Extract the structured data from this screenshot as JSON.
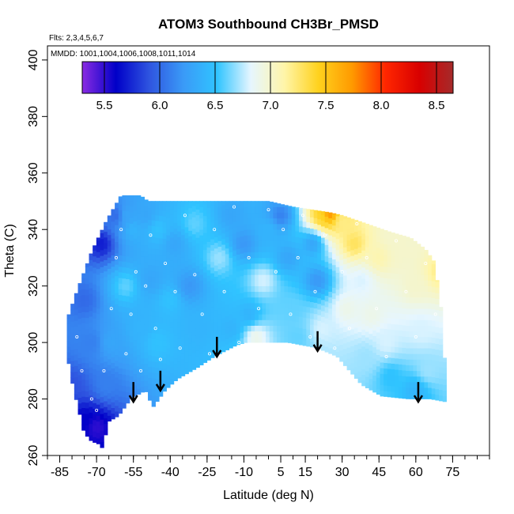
{
  "chart_data": {
    "type": "heatmap",
    "title": "ATOM3 Southbound CH3Br_PMSD",
    "annotations": [
      "Flts: 2,3,4,5,6,7",
      "MMDD: 1001,1004,1006,1008,1011,1014"
    ],
    "xlabel": "Latitude (deg N)",
    "ylabel": "Theta (C)",
    "xlim": [
      -90,
      90
    ],
    "ylim": [
      260,
      405
    ],
    "x_tick_labels": [
      "-85",
      "-70",
      "-55",
      "-40",
      "-25",
      "-10",
      "5",
      "15",
      "30",
      "45",
      "60",
      "75"
    ],
    "x_tick_values": [
      -85,
      -70,
      -55,
      -40,
      -25,
      -10,
      5,
      15,
      30,
      45,
      60,
      75
    ],
    "x_minor_step": 5,
    "y_tick_labels": [
      "260",
      "280",
      "300",
      "320",
      "340",
      "360",
      "380",
      "400"
    ],
    "y_tick_values": [
      260,
      280,
      300,
      320,
      340,
      360,
      380,
      400
    ],
    "colorbar": {
      "min": 5.3,
      "max": 8.65,
      "tick_labels": [
        "5.5",
        "6.0",
        "6.5",
        "7.0",
        "7.5",
        "8.0",
        "8.5"
      ],
      "tick_values": [
        5.5,
        6.0,
        6.5,
        7.0,
        7.5,
        8.0,
        8.5
      ],
      "colors": [
        "#8a2be2",
        "#0000c8",
        "#2f55e0",
        "#3a9af7",
        "#30c4ff",
        "#e6f6ff",
        "#fff5a8",
        "#ffd21e",
        "#ff9a00",
        "#ff2600",
        "#d80000",
        "#a52a2a"
      ]
    },
    "field": {
      "bottom_boundary": [
        [
          -82,
          296
        ],
        [
          -79,
          282
        ],
        [
          -77,
          276
        ],
        [
          -76,
          270
        ],
        [
          -74,
          267
        ],
        [
          -72,
          265
        ],
        [
          -69,
          264
        ],
        [
          -68,
          262
        ],
        [
          -66,
          268
        ],
        [
          -65,
          272
        ],
        [
          -61,
          274
        ],
        [
          -56,
          280
        ],
        [
          -50,
          283
        ],
        [
          -47,
          277
        ],
        [
          -42,
          283
        ],
        [
          -37,
          287
        ],
        [
          -29,
          291
        ],
        [
          -22,
          295
        ],
        [
          -13,
          299
        ],
        [
          -9,
          300
        ],
        [
          0,
          300
        ],
        [
          8,
          300
        ],
        [
          20,
          298
        ],
        [
          28,
          295
        ],
        [
          38,
          285
        ],
        [
          46,
          281
        ],
        [
          57,
          280
        ],
        [
          66,
          280
        ],
        [
          72,
          279
        ]
      ],
      "top_boundary": [
        [
          -82,
          302
        ],
        [
          -82,
          308
        ],
        [
          -78,
          318
        ],
        [
          -72,
          332
        ],
        [
          -66,
          343
        ],
        [
          -62,
          349
        ],
        [
          -60,
          352
        ],
        [
          -52,
          352
        ],
        [
          -49,
          350
        ],
        [
          0,
          350
        ],
        [
          10,
          348
        ],
        [
          25,
          346
        ],
        [
          30,
          345
        ],
        [
          40,
          342
        ],
        [
          50,
          339
        ],
        [
          58,
          337
        ],
        [
          64,
          333
        ],
        [
          68,
          328
        ],
        [
          69,
          320
        ],
        [
          71,
          308
        ],
        [
          72,
          290
        ]
      ],
      "samples": [
        [
          -80,
          285,
          5.9
        ],
        [
          -75,
          272,
          5.6
        ],
        [
          -70,
          270,
          5.5
        ],
        [
          -72,
          300,
          6.1
        ],
        [
          -75,
          315,
          6.0
        ],
        [
          -68,
          335,
          5.7
        ],
        [
          -62,
          345,
          6.0
        ],
        [
          -58,
          345,
          6.3
        ],
        [
          -64,
          300,
          6.3
        ],
        [
          -66,
          285,
          6.1
        ],
        [
          -58,
          320,
          6.6
        ],
        [
          -55,
          340,
          6.4
        ],
        [
          -50,
          345,
          6.3
        ],
        [
          -45,
          340,
          6.5
        ],
        [
          -48,
          322,
          6.3
        ],
        [
          -52,
          305,
          6.4
        ],
        [
          -45,
          300,
          6.5
        ],
        [
          -40,
          315,
          6.5
        ],
        [
          -38,
          335,
          6.3
        ],
        [
          -30,
          342,
          6.6
        ],
        [
          -32,
          320,
          6.2
        ],
        [
          -28,
          305,
          6.4
        ],
        [
          -20,
          330,
          6.7
        ],
        [
          -15,
          345,
          6.3
        ],
        [
          -10,
          335,
          6.2
        ],
        [
          -8,
          310,
          6.4
        ],
        [
          -15,
          305,
          6.4
        ],
        [
          -2,
          322,
          6.8
        ],
        [
          0,
          340,
          6.4
        ],
        [
          5,
          345,
          6.1
        ],
        [
          8,
          330,
          6.3
        ],
        [
          10,
          312,
          6.6
        ],
        [
          12,
          302,
          6.6
        ],
        [
          18,
          335,
          6.3
        ],
        [
          20,
          322,
          6.2
        ],
        [
          22,
          305,
          6.8
        ],
        [
          22,
          345,
          7.4
        ],
        [
          25,
          346,
          7.8
        ],
        [
          30,
          343,
          7.2
        ],
        [
          35,
          335,
          7.3
        ],
        [
          38,
          322,
          6.8
        ],
        [
          32,
          312,
          6.9
        ],
        [
          42,
          310,
          6.9
        ],
        [
          45,
          330,
          7.1
        ],
        [
          50,
          338,
          7.0
        ],
        [
          55,
          332,
          7.0
        ],
        [
          60,
          320,
          7.0
        ],
        [
          62,
          305,
          6.8
        ],
        [
          65,
          290,
          6.7
        ],
        [
          60,
          283,
          6.4
        ],
        [
          50,
          288,
          6.5
        ],
        [
          40,
          295,
          6.7
        ],
        [
          48,
          300,
          6.8
        ],
        [
          70,
          325,
          7.2
        ],
        [
          -5,
          302,
          6.9
        ]
      ],
      "observations": [
        [
          -78,
          302
        ],
        [
          -76,
          290
        ],
        [
          -72,
          280
        ],
        [
          -70,
          276
        ],
        [
          -67,
          290
        ],
        [
          -64,
          312
        ],
        [
          -62,
          330
        ],
        [
          -60,
          340
        ],
        [
          -58,
          296
        ],
        [
          -56,
          310
        ],
        [
          -54,
          325
        ],
        [
          -52,
          290
        ],
        [
          -50,
          320
        ],
        [
          -48,
          338
        ],
        [
          -46,
          305
        ],
        [
          -44,
          294
        ],
        [
          -42,
          328
        ],
        [
          -38,
          318
        ],
        [
          -36,
          298
        ],
        [
          -34,
          345
        ],
        [
          -30,
          324
        ],
        [
          -27,
          310
        ],
        [
          -24,
          296
        ],
        [
          -22,
          340
        ],
        [
          -18,
          318
        ],
        [
          -14,
          348
        ],
        [
          -12,
          300
        ],
        [
          -8,
          330
        ],
        [
          -4,
          312
        ],
        [
          0,
          347
        ],
        [
          3,
          325
        ],
        [
          6,
          340
        ],
        [
          9,
          310
        ],
        [
          12,
          330
        ],
        [
          14,
          345
        ],
        [
          17,
          302
        ],
        [
          19,
          318
        ],
        [
          23,
          338
        ],
        [
          27,
          298
        ],
        [
          30,
          325
        ],
        [
          33,
          305
        ],
        [
          36,
          342
        ],
        [
          40,
          330
        ],
        [
          44,
          312
        ],
        [
          48,
          295
        ],
        [
          52,
          336
        ],
        [
          56,
          318
        ],
        [
          60,
          302
        ],
        [
          64,
          328
        ],
        [
          68,
          310
        ]
      ],
      "arrows": [
        [
          -55,
          286,
          279
        ],
        [
          -44,
          290,
          283
        ],
        [
          -21,
          302,
          295
        ],
        [
          20,
          304,
          297
        ],
        [
          61,
          286,
          279
        ]
      ]
    }
  }
}
